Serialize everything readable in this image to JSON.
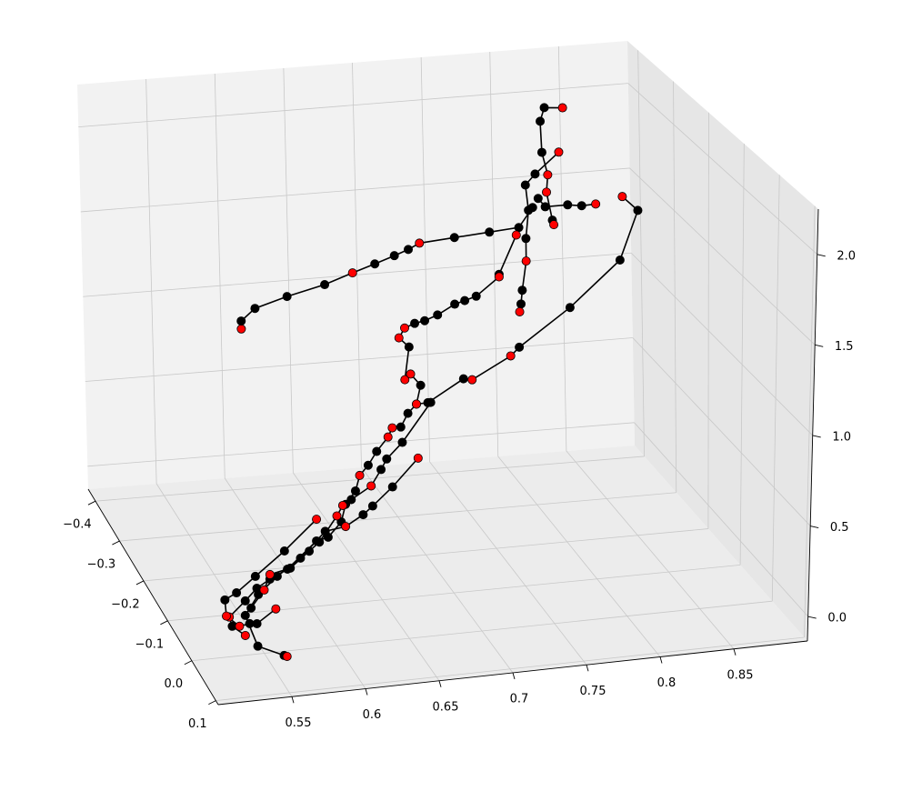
{
  "chart_data": {
    "type": "line3d",
    "xlim": [
      0.5,
      0.9
    ],
    "ylim": [
      -0.43,
      0.11
    ],
    "zlim": [
      -0.135,
      2.25
    ],
    "xticks": [
      0.55,
      0.6,
      0.65,
      0.7,
      0.75,
      0.8,
      0.85
    ],
    "yticks": [
      {
        "value": -0.4,
        "label": "−0.4"
      },
      {
        "value": -0.3,
        "label": "−0.3"
      },
      {
        "value": -0.2,
        "label": "−0.2"
      },
      {
        "value": -0.1,
        "label": "−0.1"
      },
      {
        "value": 0,
        "label": "0.0"
      },
      0.1
    ],
    "zticks": [
      {
        "value": 0,
        "label": "0.0"
      },
      0.5,
      {
        "value": 1,
        "label": "1.0"
      },
      1.5,
      {
        "value": 2,
        "label": "2.0"
      }
    ],
    "grid": true,
    "series": [
      {
        "color": "black",
        "x": [
          0.59,
          0.59,
          0.6,
          0.623,
          0.65,
          0.67,
          0.686,
          0.7,
          0.71,
          0.718,
          0.743,
          0.768,
          0.789,
          0.799
        ],
        "y": [
          -0.3,
          -0.3,
          -0.3,
          -0.3,
          -0.3,
          -0.3,
          -0.3,
          -0.3,
          -0.3,
          -0.3,
          -0.3,
          -0.3,
          -0.3,
          -0.3
        ],
        "z": [
          1.031,
          1.077,
          1.143,
          1.196,
          1.246,
          1.3,
          1.341,
          1.379,
          1.408,
          1.439,
          1.454,
          1.468,
          1.48,
          1.589
        ],
        "marker_colors": [
          "red",
          "black",
          "black",
          "black",
          "black",
          "red",
          "black",
          "black",
          "black",
          "red",
          "black",
          "black",
          "black",
          "black"
        ]
      },
      {
        "color": "black",
        "x": [
          0.821,
          0.808,
          0.805,
          0.806,
          0.81,
          0.809,
          0.813,
          0.814
        ],
        "y": [
          -0.3,
          -0.3,
          -0.3,
          -0.3,
          -0.3,
          -0.3,
          -0.3,
          -0.3
        ],
        "z": [
          2.152,
          2.162,
          2.085,
          1.904,
          1.771,
          1.671,
          1.506,
          1.479
        ],
        "marker_colors": [
          "red",
          "black",
          "black",
          "black",
          "red",
          "red",
          "black",
          "red"
        ]
      },
      {
        "color": "black",
        "x": [
          0.818,
          0.801,
          0.794,
          0.796,
          0.794,
          0.794,
          0.791,
          0.79,
          0.789
        ],
        "y": [
          -0.3,
          -0.3,
          -0.3,
          -0.3,
          -0.3,
          -0.3,
          -0.3,
          -0.3,
          -0.3
        ],
        "z": [
          1.897,
          1.782,
          1.723,
          1.575,
          1.413,
          1.282,
          1.115,
          1.036,
          0.991
        ],
        "marker_colors": [
          "red",
          "black",
          "black",
          "black",
          "black",
          "red",
          "black",
          "black",
          "red"
        ]
      },
      {
        "color": "black",
        "x": [
          0.803,
          0.808,
          0.824,
          0.834,
          0.844
        ],
        "y": [
          -0.3,
          -0.3,
          -0.3,
          -0.3,
          -0.3
        ],
        "z": [
          1.639,
          1.587,
          1.587,
          1.575,
          1.578
        ],
        "marker_colors": [
          "black",
          "black",
          "black",
          "black",
          "red"
        ]
      },
      {
        "color": "black",
        "x": [
          0.863,
          0.874,
          0.861,
          0.825,
          0.756,
          0.75,
          0.723,
          0.717,
          0.692,
          0.684
        ],
        "y": [
          -0.3,
          -0.3,
          -0.3,
          -0.3,
          -0.15,
          -0.15,
          -0.15,
          -0.15,
          -0.15,
          -0.15
        ],
        "z": [
          1.608,
          1.52,
          1.241,
          0.991,
          1.112,
          1.067,
          0.952,
          0.962,
          0.845,
          0.843
        ],
        "marker_colors": [
          "red",
          "black",
          "black",
          "black",
          "black",
          "red",
          "red",
          "black",
          "black",
          "red"
        ]
      },
      {
        "color": "black",
        "x": [
          0.754,
          0.742,
          0.742,
          0.726,
          0.718,
          0.711,
          0.699,
          0.69,
          0.683,
          0.676,
          0.672,
          0.679,
          0.676,
          0.68,
          0.687,
          0.684,
          0.678,
          0.673,
          0.667,
          0.664,
          0.656,
          0.65,
          0.644,
          0.641,
          0.634,
          0.603,
          0.594,
          0.586,
          0.566,
          0.554,
          0.545,
          0.537,
          0.526,
          0.528,
          0.537
        ],
        "y": [
          -0.15,
          -0.15,
          -0.15,
          -0.15,
          -0.15,
          -0.15,
          -0.15,
          -0.15,
          -0.15,
          -0.15,
          -0.15,
          -0.15,
          -0.15,
          -0.15,
          -0.15,
          -0.15,
          -0.15,
          -0.15,
          -0.15,
          -0.15,
          -0.15,
          -0.15,
          -0.15,
          -0.15,
          -0.15,
          0,
          0,
          0,
          0,
          0,
          0,
          0,
          0,
          0,
          0
        ],
        "z": [
          1.752,
          1.537,
          1.523,
          1.425,
          1.406,
          1.391,
          1.339,
          1.313,
          1.303,
          1.282,
          1.229,
          1.172,
          0.988,
          1.017,
          0.948,
          0.843,
          0.795,
          0.721,
          0.721,
          0.671,
          0.595,
          0.521,
          0.468,
          0.382,
          0.311,
          0.554,
          0.476,
          0.462,
          0.321,
          0.275,
          0.232,
          0.168,
          0.087,
          0.034,
          -0.025
        ],
        "marker_colors": [
          "red",
          "black",
          "red",
          "black",
          "black",
          "black",
          "black",
          "black",
          "black",
          "red",
          "red",
          "black",
          "red",
          "red",
          "black",
          "red",
          "black",
          "black",
          "red",
          "red",
          "black",
          "black",
          "red",
          "black",
          "black",
          "black",
          "black",
          "black",
          "black",
          "black",
          "black",
          "black",
          "red",
          "black",
          "red"
        ]
      },
      {
        "color": "black",
        "x": [
          0.685,
          0.667,
          0.653,
          0.618,
          0.606,
          0.592,
          0.575,
          0.559,
          0.546,
          0.537,
          0.537,
          0.555,
          0.557
        ],
        "y": [
          -0.15,
          -0.15,
          -0.15,
          0,
          0,
          0,
          0,
          0,
          0,
          0,
          0.05,
          0.05,
          0.05
        ],
        "z": [
          0.535,
          0.385,
          0.287,
          0.582,
          0.526,
          0.511,
          0.375,
          0.287,
          0.196,
          0.087,
          0.025,
          -0.042,
          -0.049
        ],
        "marker_colors": [
          "red",
          "black",
          "black",
          "black",
          "red",
          "black",
          "black",
          "black",
          "black",
          "black",
          "black",
          "black",
          "red"
        ]
      },
      {
        "color": "black",
        "x": [
          0.586,
          0.564,
          0.544,
          0.531,
          0.523,
          0.524,
          0.533,
          0.54,
          0.545,
          0.558
        ],
        "y": [
          0,
          0,
          0,
          0,
          0,
          0,
          0,
          0,
          0,
          0
        ],
        "z": [
          0.583,
          0.424,
          0.299,
          0.218,
          0.185,
          0.094,
          0.03,
          0.039,
          0.034,
          0.106
        ],
        "marker_colors": [
          "red",
          "black",
          "black",
          "black",
          "black",
          "red",
          "red",
          "black",
          "black",
          "red"
        ]
      },
      {
        "color": "black",
        "x": [
          0.694,
          0.674,
          0.663,
          0.659,
          0.652,
          0.638,
          0.604,
          0.6,
          0.588,
          0.581,
          0.568,
          0.554,
          0.55,
          0.541
        ],
        "y": [
          -0.15,
          -0.15,
          -0.15,
          -0.15,
          -0.15,
          -0.15,
          0,
          0,
          0,
          0,
          0,
          0,
          0,
          0
        ],
        "z": [
          0.845,
          0.633,
          0.547,
          0.49,
          0.402,
          0.335,
          0.645,
          0.59,
          0.454,
          0.409,
          0.325,
          0.301,
          0.218,
          0.125
        ],
        "marker_colors": [
          "black",
          "black",
          "black",
          "black",
          "red",
          "black",
          "red",
          "red",
          "black",
          "black",
          "black",
          "red",
          "red",
          "black"
        ]
      }
    ]
  }
}
